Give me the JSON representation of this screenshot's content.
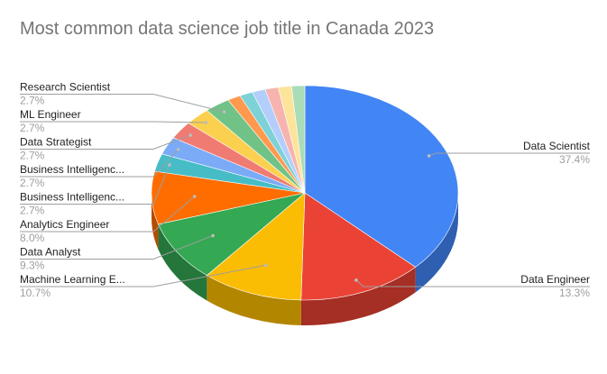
{
  "chart_data": {
    "type": "pie",
    "title": "Most common data science job title in Canada 2023",
    "three_d": true,
    "slices": [
      {
        "label": "Data Scientist",
        "value_label": "37.4%",
        "value": 37.4,
        "color": "#4285f4",
        "dark": "#2f5fb0"
      },
      {
        "label": "Data Engineer",
        "value_label": "13.3%",
        "value": 13.3,
        "color": "#ea4335",
        "dark": "#a52e25"
      },
      {
        "label": "Machine Learning E...",
        "value_label": "10.7%",
        "value": 10.7,
        "color": "#fbbc04",
        "dark": "#b38600"
      },
      {
        "label": "Data Analyst",
        "value_label": "9.3%",
        "value": 9.3,
        "color": "#34a853",
        "dark": "#24763a"
      },
      {
        "label": "Analytics Engineer",
        "value_label": "8.0%",
        "value": 8.0,
        "color": "#ff6d01",
        "dark": "#b34c00"
      },
      {
        "label": "Business Intelligenc...",
        "value_label": "2.7%",
        "value": 2.7,
        "color": "#46bdc6",
        "dark": "#31858b"
      },
      {
        "label": "Business Intelligenc...",
        "value_label": "2.7%",
        "value": 2.7,
        "color": "#7baaf7",
        "dark": "#5678ad"
      },
      {
        "label": "Data Strategist",
        "value_label": "2.7%",
        "value": 2.7,
        "color": "#f07b72",
        "dark": "#a85650"
      },
      {
        "label": "ML Engineer",
        "value_label": "2.7%",
        "value": 2.7,
        "color": "#fcd04f",
        "dark": "#b09238"
      },
      {
        "label": "Research Scientist",
        "value_label": "2.7%",
        "value": 2.7,
        "color": "#71c287",
        "dark": "#4f885f"
      },
      {
        "label": "",
        "value_label": "",
        "value": 1.4,
        "color": "#ff994d",
        "dark": "#b36b36"
      },
      {
        "label": "",
        "value_label": "",
        "value": 1.4,
        "color": "#7ed1d7",
        "dark": "#589397"
      },
      {
        "label": "",
        "value_label": "",
        "value": 1.4,
        "color": "#b3cefb",
        "dark": "#7d90b0"
      },
      {
        "label": "",
        "value_label": "",
        "value": 1.4,
        "color": "#f7b4ae",
        "dark": "#ad7e7a"
      },
      {
        "label": "",
        "value_label": "",
        "value": 1.4,
        "color": "#fde49b",
        "dark": "#b1a06d"
      },
      {
        "label": "",
        "value_label": "",
        "value": 1.4,
        "color": "#aadcb7",
        "dark": "#779a80"
      }
    ]
  }
}
